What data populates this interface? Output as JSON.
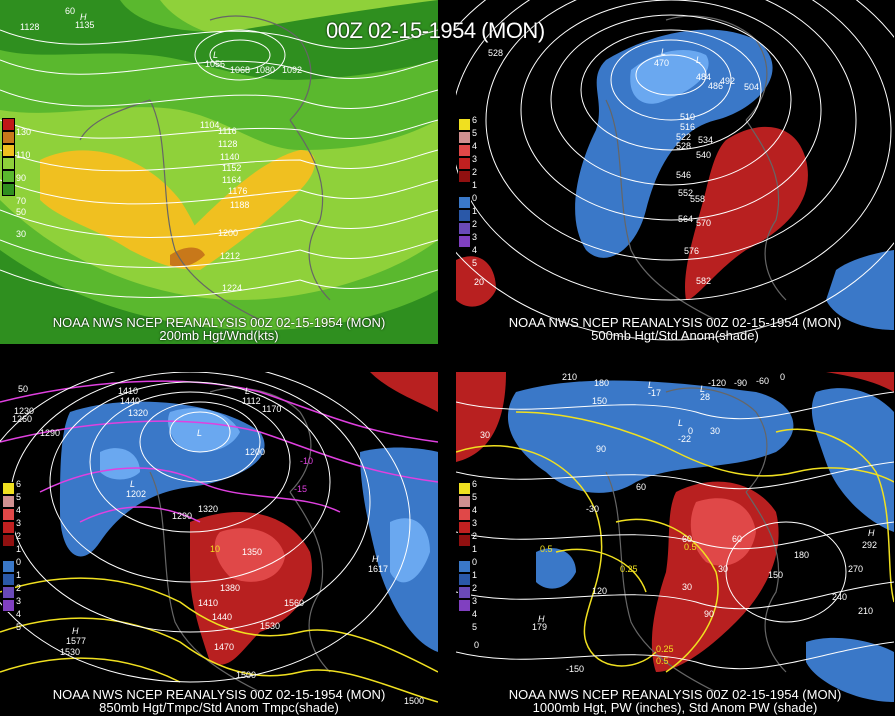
{
  "title": "00Z 02-15-1954 (MON)",
  "colors": {
    "background": "#000000",
    "wind_green_dark": "#2f8f1f",
    "wind_green": "#5ab82e",
    "wind_green_light": "#8fd13a",
    "wind_yellow": "#f0c020",
    "wind_orange": "#c8781a",
    "anom_blue": "#3a78c8",
    "anom_light_blue": "#6aa8f0",
    "anom_red": "#b82020",
    "anom_light_red": "#e04848",
    "temp_magenta": "#e040e0",
    "pw_yellow": "#f0e020",
    "contour_white": "#ffffff"
  },
  "panels": [
    {
      "id": "tl",
      "caption_line1": "NOAA NWS NCEP REANALYSIS 00Z 02-15-1954 (MON)",
      "caption_line2": "200mb Hgt/Wnd(kts)",
      "legend": [
        "130",
        "110",
        "90",
        "70",
        "50",
        "30"
      ],
      "legend_colors": [
        "#c01818",
        "#c8781a",
        "#f0c020",
        "#8fd13a",
        "#5ab82e",
        "#2f8f1f"
      ],
      "labels": [
        "1128",
        "1135",
        "H",
        "60",
        "L",
        "1056",
        "1068",
        "1080",
        "1092",
        "1104",
        "1116",
        "1128",
        "1140",
        "1152",
        "1164",
        "1176",
        "1188",
        "1200",
        "1212",
        "1224"
      ]
    },
    {
      "id": "tr",
      "caption_line1": "NOAA NWS NCEP REANALYSIS 00Z 02-15-1954 (MON)",
      "caption_line2": "500mb Hgt/Std Anom(shade)",
      "legend": [
        "6",
        "5",
        "4",
        "3",
        "2",
        "1",
        "0",
        "1",
        "2",
        "3",
        "4",
        "5"
      ],
      "labels": [
        "528",
        "L",
        "470",
        "L",
        "484",
        "486",
        "492",
        "504",
        "510",
        "516",
        "522",
        "528",
        "534",
        "540",
        "546",
        "552",
        "558",
        "564",
        "570",
        "576",
        "582",
        "20"
      ]
    },
    {
      "id": "bl",
      "caption_line1": "NOAA NWS NCEP REANALYSIS 00Z 02-15-1954 (MON)",
      "caption_line2": "850mb Hgt/Tmpc/Std Anom Tmpc(shade)",
      "legend": [
        "6",
        "5",
        "4",
        "3",
        "2",
        "1",
        "0",
        "1",
        "2",
        "3",
        "4",
        "5"
      ],
      "labels": [
        "50",
        "1410",
        "1440",
        "1320",
        "1230",
        "1260",
        "1290",
        "L",
        "1112",
        "1170",
        "L",
        "1200",
        "L",
        "1202",
        "1290",
        "1320",
        "1350",
        "1380",
        "1410",
        "1440",
        "1470",
        "1500",
        "1530",
        "1560",
        "H",
        "1617",
        "H",
        "1577",
        "1530",
        "1500",
        "-15",
        "-10",
        "10"
      ]
    },
    {
      "id": "br",
      "caption_line1": "NOAA NWS NCEP REANALYSIS 00Z 02-15-1954 (MON)",
      "caption_line2": "1000mb Hgt, PW (inches), Std Anom PW (shade)",
      "legend": [
        "6",
        "5",
        "4",
        "3",
        "2",
        "1",
        "0",
        "1",
        "2",
        "3",
        "4",
        "5"
      ],
      "labels": [
        "210",
        "180",
        "150",
        "L",
        "-17",
        "L",
        "28",
        "-120",
        "-90",
        "-60",
        "0",
        "30",
        "90",
        "60",
        "L",
        "-22",
        "0",
        "30",
        "-30",
        "0.5",
        "0.25",
        "0.5",
        "120",
        "60",
        "30",
        "60",
        "180",
        "150",
        "270",
        "240",
        "210",
        "H",
        "292",
        "H",
        "179",
        "-150",
        "0",
        "0.25",
        "0.5",
        "90",
        "30"
      ]
    }
  ]
}
